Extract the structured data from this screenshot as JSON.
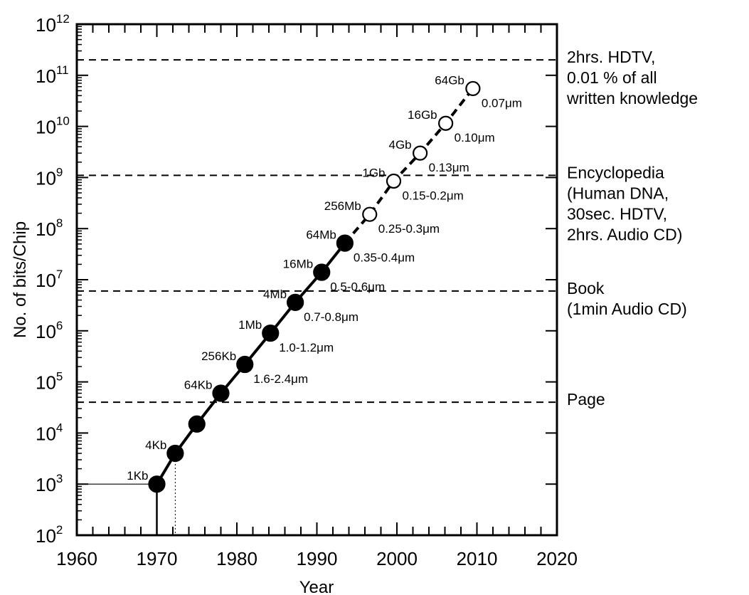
{
  "chart_data": {
    "type": "scatter",
    "scale": {
      "x": "linear",
      "y": "log10"
    },
    "xlabel": "Year",
    "ylabel": "No. of bits/Chip",
    "xlim": [
      1960,
      2020
    ],
    "ylim": [
      100,
      1000000000000
    ],
    "x_ticks": [
      "1960",
      "1970",
      "1980",
      "1990",
      "2000",
      "2010",
      "2020"
    ],
    "y_tick_exponents": [
      "2",
      "3",
      "4",
      "5",
      "6",
      "7",
      "8",
      "9",
      "10",
      "11",
      "12"
    ],
    "y_tick_base": "10",
    "series": [
      {
        "style": "solid-filled",
        "points": [
          {
            "x": 1970.0,
            "y": 1000,
            "label": "1Kb",
            "feature": ""
          },
          {
            "x": 1972.3,
            "y": 4000,
            "label": "4Kb",
            "feature": ""
          },
          {
            "x": 1975.0,
            "y": 15000,
            "label": "",
            "feature": ""
          },
          {
            "x": 1978.0,
            "y": 60000,
            "label": "64Kb",
            "feature": ""
          },
          {
            "x": 1981.0,
            "y": 220000,
            "label": "256Kb",
            "feature": "1.6-2.4μm"
          },
          {
            "x": 1984.2,
            "y": 900000,
            "label": "1Mb",
            "feature": "1.0-1.2μm"
          },
          {
            "x": 1987.3,
            "y": 3600000,
            "label": "4Mb",
            "feature": "0.7-0.8μm"
          },
          {
            "x": 1990.6,
            "y": 14000000,
            "label": "16Mb",
            "feature": "0.5-0.6μm"
          },
          {
            "x": 1993.5,
            "y": 52000000,
            "label": "64Mb",
            "feature": "0.35-0.4μm"
          }
        ]
      },
      {
        "style": "dashed-open",
        "points": [
          {
            "x": 1993.5,
            "y": 52000000,
            "label": "",
            "feature": ""
          },
          {
            "x": 1996.6,
            "y": 190000000,
            "label": "256Mb",
            "feature": "0.25-0.3μm"
          },
          {
            "x": 1999.6,
            "y": 850000000,
            "label": "1Gb",
            "feature": "0.15-0.2μm"
          },
          {
            "x": 2002.9,
            "y": 3000000000,
            "label": "4Gb",
            "feature": "0.13μm"
          },
          {
            "x": 2006.1,
            "y": 11500000000,
            "label": "16Gb",
            "feature": "0.10μm"
          },
          {
            "x": 2009.5,
            "y": 55000000000,
            "label": "64Gb",
            "feature": "0.07μm"
          }
        ]
      }
    ],
    "reference_lines": [
      {
        "y": 200000000000,
        "lines": [
          "2hrs. HDTV,",
          "0.01 % of all",
          "written knowledge"
        ]
      },
      {
        "y": 1100000000,
        "lines": [
          "Encyclopedia",
          "(Human DNA,",
          "30sec. HDTV,",
          "2hrs. Audio CD)"
        ]
      },
      {
        "y": 6000000,
        "lines": [
          "Book",
          "(1min Audio CD)"
        ]
      },
      {
        "y": 40000,
        "lines": [
          "Page"
        ]
      }
    ],
    "grid": false
  }
}
